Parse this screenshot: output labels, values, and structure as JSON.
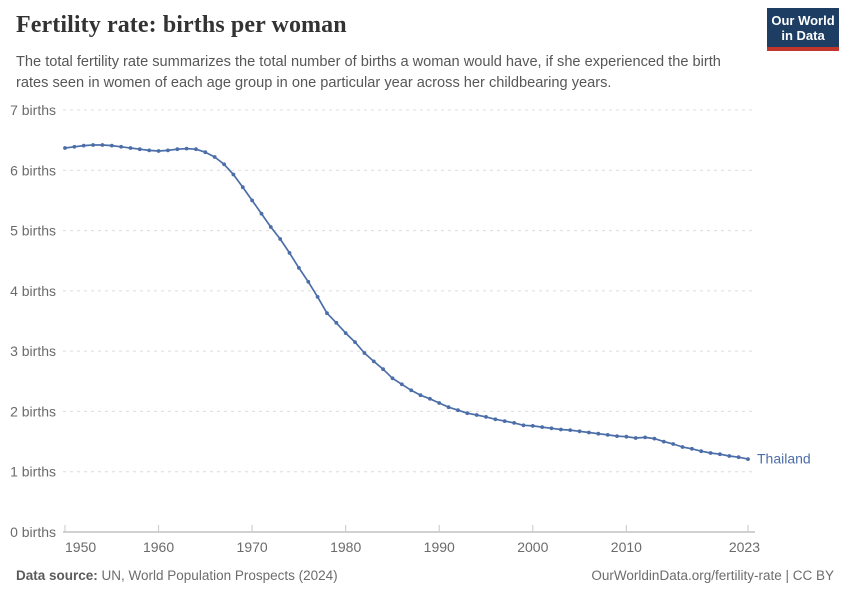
{
  "header": {
    "title": "Fertility rate: births per woman",
    "subtitle": "The total fertility rate summarizes the total number of births a woman would have, if she experienced the birth rates seen in women of each age group in one particular year across her childbearing years.",
    "logo": {
      "line1": "Our World",
      "line2": "in Data"
    }
  },
  "chart_data": {
    "type": "line",
    "title": "Fertility rate: births per woman",
    "xlabel": "",
    "ylabel": "",
    "xlim": [
      1950,
      2023
    ],
    "ylim": [
      0,
      7
    ],
    "grid": "dashed-horizontal",
    "legend_position": "end-of-line-label",
    "x_ticks": [
      1950,
      1960,
      1970,
      1980,
      1990,
      2000,
      2010,
      2023
    ],
    "x_tick_labels": [
      "1950",
      "1960",
      "1970",
      "1980",
      "1990",
      "2000",
      "2010",
      "2023"
    ],
    "y_ticks": [
      0,
      1,
      2,
      3,
      4,
      5,
      6,
      7
    ],
    "y_tick_labels": [
      "0 births",
      "1 births",
      "2 births",
      "3 births",
      "4 births",
      "5 births",
      "6 births",
      "7 births"
    ],
    "series": [
      {
        "name": "Thailand",
        "color": "#4c6ea8",
        "x": [
          1950,
          1951,
          1952,
          1953,
          1954,
          1955,
          1956,
          1957,
          1958,
          1959,
          1960,
          1961,
          1962,
          1963,
          1964,
          1965,
          1966,
          1967,
          1968,
          1969,
          1970,
          1971,
          1972,
          1973,
          1974,
          1975,
          1976,
          1977,
          1978,
          1979,
          1980,
          1981,
          1982,
          1983,
          1984,
          1985,
          1986,
          1987,
          1988,
          1989,
          1990,
          1991,
          1992,
          1993,
          1994,
          1995,
          1996,
          1997,
          1998,
          1999,
          2000,
          2001,
          2002,
          2003,
          2004,
          2005,
          2006,
          2007,
          2008,
          2009,
          2010,
          2011,
          2012,
          2013,
          2014,
          2015,
          2016,
          2017,
          2018,
          2019,
          2020,
          2021,
          2022,
          2023
        ],
        "values": [
          6.37,
          6.39,
          6.41,
          6.42,
          6.42,
          6.41,
          6.39,
          6.37,
          6.35,
          6.33,
          6.32,
          6.33,
          6.35,
          6.36,
          6.35,
          6.3,
          6.22,
          6.1,
          5.93,
          5.72,
          5.5,
          5.28,
          5.06,
          4.86,
          4.63,
          4.38,
          4.15,
          3.9,
          3.63,
          3.47,
          3.3,
          3.15,
          2.97,
          2.83,
          2.7,
          2.55,
          2.45,
          2.35,
          2.27,
          2.21,
          2.14,
          2.07,
          2.02,
          1.97,
          1.94,
          1.91,
          1.87,
          1.84,
          1.81,
          1.77,
          1.76,
          1.74,
          1.72,
          1.7,
          1.69,
          1.67,
          1.65,
          1.63,
          1.61,
          1.59,
          1.58,
          1.56,
          1.57,
          1.55,
          1.5,
          1.46,
          1.41,
          1.38,
          1.34,
          1.31,
          1.29,
          1.26,
          1.24,
          1.21
        ]
      }
    ]
  },
  "footer": {
    "source_label": "Data source:",
    "source_text": " UN, World Population Prospects (2024)",
    "link_text": "OurWorldinData.org/fertility-rate | CC BY"
  },
  "colors": {
    "line": "#4c6ea8",
    "grid": "#dcdcdc",
    "axis": "#a3a3a3",
    "tick": "#c9c9c9",
    "axis_text": "#6b6b6b",
    "logo_bg": "#1d3d63",
    "logo_red": "#c0362c"
  }
}
